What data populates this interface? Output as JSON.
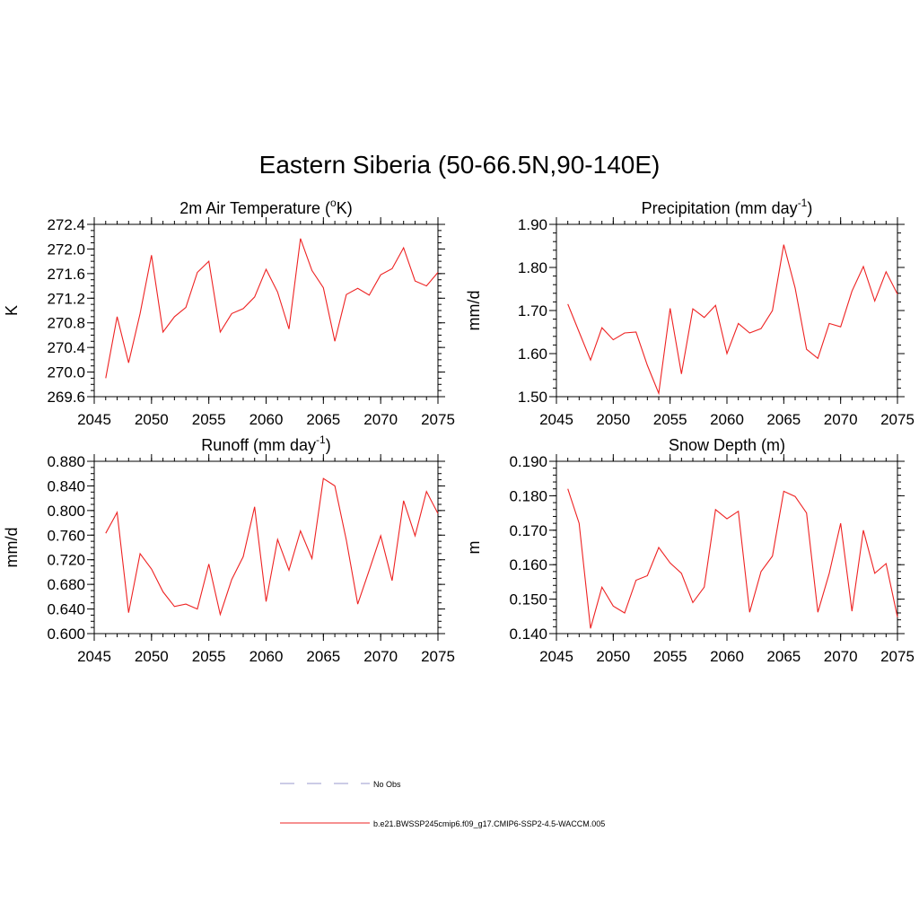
{
  "page_title": "Eastern Siberia (50-66.5N,90-140E)",
  "colors": {
    "model": "#ee2222",
    "obs": "#9999cc",
    "axis": "#000000"
  },
  "chart_data": [
    {
      "type": "line",
      "title_main": "2m Air Temperature (",
      "title_sup": "o",
      "title_end": "K)",
      "ylabel": "K",
      "xlim": [
        2045,
        2075
      ],
      "ylim": [
        269.6,
        272.4
      ],
      "y_ticks": [
        "269.6",
        "270.0",
        "270.4",
        "270.8",
        "271.2",
        "271.6",
        "272.0",
        "272.4"
      ],
      "y_minor": 0.1,
      "x_ticks": [
        "2045",
        "2050",
        "2055",
        "2060",
        "2065",
        "2070",
        "2075"
      ],
      "x": [
        2046,
        2047,
        2048,
        2049,
        2050,
        2051,
        2052,
        2053,
        2054,
        2055,
        2056,
        2057,
        2058,
        2059,
        2060,
        2061,
        2062,
        2063,
        2064,
        2065,
        2066,
        2067,
        2068,
        2069,
        2070,
        2071,
        2072,
        2073,
        2074,
        2075
      ],
      "values": [
        269.9,
        270.9,
        270.15,
        270.95,
        271.9,
        270.65,
        270.9,
        271.05,
        271.62,
        271.8,
        270.65,
        270.95,
        271.03,
        271.22,
        271.67,
        271.3,
        270.7,
        272.17,
        271.65,
        271.37,
        270.5,
        271.26,
        271.36,
        271.25,
        271.58,
        271.68,
        272.02,
        271.48,
        271.4,
        271.62
      ]
    },
    {
      "type": "line",
      "title_main": "Precipitation (mm day",
      "title_sup": "-1",
      "title_end": ")",
      "ylabel": "mm/d",
      "xlim": [
        2045,
        2075
      ],
      "ylim": [
        1.5,
        1.9
      ],
      "y_ticks": [
        "1.50",
        "1.60",
        "1.70",
        "1.80",
        "1.90"
      ],
      "y_minor": 0.02,
      "x_ticks": [
        "2045",
        "2050",
        "2055",
        "2060",
        "2065",
        "2070",
        "2075"
      ],
      "x": [
        2046,
        2047,
        2048,
        2049,
        2050,
        2051,
        2052,
        2053,
        2054,
        2055,
        2056,
        2057,
        2058,
        2059,
        2060,
        2061,
        2062,
        2063,
        2064,
        2065,
        2066,
        2067,
        2068,
        2069,
        2070,
        2071,
        2072,
        2073,
        2074,
        2075
      ],
      "values": [
        1.715,
        1.65,
        1.585,
        1.66,
        1.632,
        1.648,
        1.65,
        1.573,
        1.508,
        1.705,
        1.553,
        1.704,
        1.684,
        1.712,
        1.6,
        1.67,
        1.648,
        1.658,
        1.7,
        1.853,
        1.752,
        1.61,
        1.589,
        1.67,
        1.662,
        1.745,
        1.802,
        1.722,
        1.79,
        1.738
      ]
    },
    {
      "type": "line",
      "title_main": "Runoff (mm day",
      "title_sup": "-1",
      "title_end": ")",
      "ylabel": "mm/d",
      "xlim": [
        2045,
        2075
      ],
      "ylim": [
        0.6,
        0.88
      ],
      "y_ticks": [
        "0.600",
        "0.640",
        "0.680",
        "0.720",
        "0.760",
        "0.800",
        "0.840",
        "0.880"
      ],
      "y_minor": 0.01,
      "x_ticks": [
        "2045",
        "2050",
        "2055",
        "2060",
        "2065",
        "2070",
        "2075"
      ],
      "x": [
        2046,
        2047,
        2048,
        2049,
        2050,
        2051,
        2052,
        2053,
        2054,
        2055,
        2056,
        2057,
        2058,
        2059,
        2060,
        2061,
        2062,
        2063,
        2064,
        2065,
        2066,
        2067,
        2068,
        2069,
        2070,
        2071,
        2072,
        2073,
        2074,
        2075
      ],
      "values": [
        0.763,
        0.797,
        0.634,
        0.73,
        0.705,
        0.668,
        0.644,
        0.648,
        0.64,
        0.713,
        0.631,
        0.688,
        0.725,
        0.806,
        0.652,
        0.753,
        0.703,
        0.767,
        0.722,
        0.852,
        0.84,
        0.752,
        0.648,
        0.703,
        0.759,
        0.686,
        0.816,
        0.759,
        0.831,
        0.795
      ]
    },
    {
      "type": "line",
      "title_main": "Snow Depth (m)",
      "title_sup": "",
      "title_end": "",
      "ylabel": "m",
      "xlim": [
        2045,
        2075
      ],
      "ylim": [
        0.14,
        0.19
      ],
      "y_ticks": [
        "0.140",
        "0.150",
        "0.160",
        "0.170",
        "0.180",
        "0.190"
      ],
      "y_minor": 0.002,
      "x_ticks": [
        "2045",
        "2050",
        "2055",
        "2060",
        "2065",
        "2070",
        "2075"
      ],
      "x": [
        2046,
        2047,
        2048,
        2049,
        2050,
        2051,
        2052,
        2053,
        2054,
        2055,
        2056,
        2057,
        2058,
        2059,
        2060,
        2061,
        2062,
        2063,
        2064,
        2065,
        2066,
        2067,
        2068,
        2069,
        2070,
        2071,
        2072,
        2073,
        2074,
        2075
      ],
      "values": [
        0.182,
        0.172,
        0.1415,
        0.1535,
        0.148,
        0.146,
        0.1555,
        0.1568,
        0.165,
        0.1605,
        0.1575,
        0.149,
        0.1535,
        0.176,
        0.1733,
        0.1755,
        0.1462,
        0.158,
        0.1625,
        0.1813,
        0.1798,
        0.175,
        0.1462,
        0.1575,
        0.172,
        0.1465,
        0.17,
        0.1575,
        0.1603,
        0.1448
      ]
    }
  ],
  "legend": {
    "items": [
      {
        "label": "No Obs",
        "style": "dashed"
      },
      {
        "label": "b.e21.BWSSP245cmip6.f09_g17.CMIP6-SSP2-4.5-WACCM.005",
        "style": "solid"
      }
    ]
  }
}
